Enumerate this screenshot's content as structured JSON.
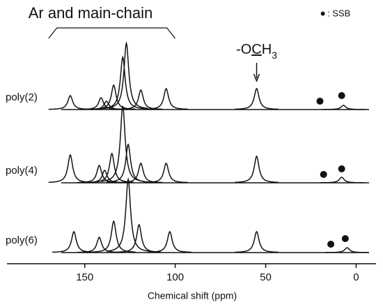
{
  "chart_data": {
    "type": "nmr-stack",
    "xlabel": "Chemical shift (ppm)",
    "xlim": [
      193,
      -11
    ],
    "xticks": [
      150,
      100,
      50,
      0
    ],
    "x_reversed": true,
    "bracket_label": "Ar and main-chain",
    "bracket_range": [
      170,
      100
    ],
    "arrow_label_parts": [
      "-O",
      "C",
      "H",
      "3"
    ],
    "arrow_x": 55,
    "legend_marker": "●",
    "legend_text": ": SSB",
    "color": "#111111",
    "series": [
      {
        "name": "poly(2)",
        "peaks_x": [
          158,
          141,
          138,
          134,
          129,
          127,
          119,
          105,
          55,
          7
        ],
        "peaks_height": [
          20,
          17,
          12,
          35,
          75,
          95,
          28,
          30,
          30,
          6
        ],
        "ssb": [
          20,
          8
        ]
      },
      {
        "name": "poly(4)",
        "peaks_x": [
          158,
          142,
          139,
          135,
          129,
          126,
          119,
          105,
          55,
          8
        ],
        "peaks_height": [
          40,
          25,
          18,
          42,
          110,
          55,
          28,
          28,
          38,
          8
        ],
        "ssb": [
          18,
          8
        ]
      },
      {
        "name": "poly(6)",
        "peaks_x": [
          156,
          142,
          134,
          126,
          120,
          103,
          55,
          5
        ],
        "peaks_height": [
          30,
          22,
          45,
          105,
          40,
          30,
          30,
          7
        ],
        "ssb": [
          14,
          6
        ]
      }
    ]
  }
}
